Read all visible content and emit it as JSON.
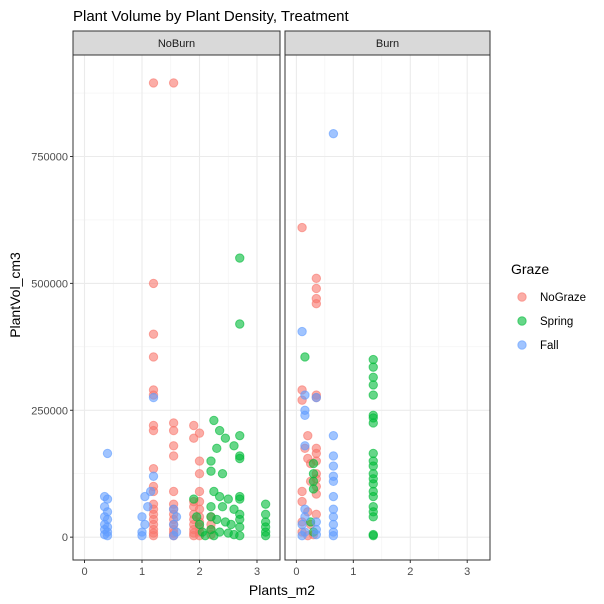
{
  "chart_data": {
    "type": "scatter",
    "title": "Plant Volume by Plant Density, Treatment",
    "xlabel": "Plants_m2",
    "ylabel": "PlantVol_cm3",
    "xlim": [
      -0.2,
      3.4
    ],
    "ylim": [
      -45000,
      950000
    ],
    "x_ticks": [
      0,
      1,
      2,
      3
    ],
    "x_tick_labels": [
      "0",
      "1",
      "2",
      "3"
    ],
    "y_ticks": [
      0,
      250000,
      500000,
      750000
    ],
    "y_tick_labels": [
      "0",
      "250000",
      "500000",
      "750000"
    ],
    "grid": true,
    "legend": {
      "title": "Graze",
      "placement": "right",
      "entries": [
        "NoGraze",
        "Spring",
        "Fall"
      ]
    },
    "colors": {
      "NoGraze": "#F8766D",
      "Spring": "#00BA38",
      "Fall": "#619CFF"
    },
    "panels": [
      {
        "label": "NoBurn",
        "series": [
          {
            "name": "NoGraze",
            "points": [
              [
                1.2,
                895000
              ],
              [
                1.55,
                895000
              ],
              [
                1.2,
                500000
              ],
              [
                1.2,
                400000
              ],
              [
                1.2,
                355000
              ],
              [
                1.2,
                290000
              ],
              [
                1.2,
                280000
              ],
              [
                1.2,
                220000
              ],
              [
                1.2,
                210000
              ],
              [
                1.2,
                135000
              ],
              [
                1.2,
                100000
              ],
              [
                1.2,
                90000
              ],
              [
                1.2,
                65000
              ],
              [
                1.2,
                55000
              ],
              [
                1.2,
                45000
              ],
              [
                1.2,
                35000
              ],
              [
                1.2,
                25000
              ],
              [
                1.2,
                15000
              ],
              [
                1.2,
                8000
              ],
              [
                1.2,
                3000
              ],
              [
                1.55,
                225000
              ],
              [
                1.55,
                210000
              ],
              [
                1.55,
                180000
              ],
              [
                1.55,
                160000
              ],
              [
                1.55,
                90000
              ],
              [
                1.55,
                65000
              ],
              [
                1.55,
                55000
              ],
              [
                1.55,
                45000
              ],
              [
                1.55,
                35000
              ],
              [
                1.55,
                25000
              ],
              [
                1.55,
                15000
              ],
              [
                1.55,
                8000
              ],
              [
                1.55,
                3000
              ],
              [
                1.9,
                220000
              ],
              [
                1.9,
                195000
              ],
              [
                1.9,
                70000
              ],
              [
                1.9,
                60000
              ],
              [
                1.9,
                45000
              ],
              [
                1.9,
                35000
              ],
              [
                1.9,
                25000
              ],
              [
                1.9,
                15000
              ],
              [
                1.9,
                8000
              ],
              [
                1.9,
                3000
              ],
              [
                2.0,
                205000
              ],
              [
                2.0,
                150000
              ],
              [
                2.0,
                125000
              ],
              [
                2.0,
                90000
              ],
              [
                2.0,
                70000
              ],
              [
                2.0,
                55000
              ],
              [
                2.0,
                40000
              ],
              [
                2.0,
                30000
              ],
              [
                2.0,
                20000
              ],
              [
                2.0,
                10000
              ],
              [
                2.0,
                3000
              ],
              [
                2.2,
                40000
              ],
              [
                2.2,
                25000
              ],
              [
                2.2,
                15000
              ],
              [
                2.2,
                5000
              ]
            ]
          },
          {
            "name": "Spring",
            "points": [
              [
                2.7,
                550000
              ],
              [
                2.7,
                420000
              ],
              [
                2.25,
                230000
              ],
              [
                2.35,
                210000
              ],
              [
                2.45,
                195000
              ],
              [
                2.6,
                180000
              ],
              [
                2.7,
                200000
              ],
              [
                2.7,
                160000
              ],
              [
                2.7,
                155000
              ],
              [
                2.3,
                175000
              ],
              [
                2.2,
                150000
              ],
              [
                2.2,
                130000
              ],
              [
                2.4,
                125000
              ],
              [
                2.25,
                90000
              ],
              [
                2.35,
                80000
              ],
              [
                2.5,
                75000
              ],
              [
                2.7,
                80000
              ],
              [
                2.7,
                75000
              ],
              [
                2.2,
                60000
              ],
              [
                2.4,
                60000
              ],
              [
                2.6,
                55000
              ],
              [
                2.7,
                45000
              ],
              [
                2.2,
                40000
              ],
              [
                2.3,
                35000
              ],
              [
                2.45,
                30000
              ],
              [
                2.55,
                25000
              ],
              [
                2.7,
                35000
              ],
              [
                2.7,
                20000
              ],
              [
                2.2,
                15000
              ],
              [
                2.35,
                10000
              ],
              [
                2.5,
                8000
              ],
              [
                2.6,
                5000
              ],
              [
                2.7,
                3000
              ],
              [
                2.25,
                3000
              ],
              [
                3.15,
                65000
              ],
              [
                3.15,
                45000
              ],
              [
                3.15,
                30000
              ],
              [
                3.15,
                20000
              ],
              [
                3.15,
                10000
              ],
              [
                3.15,
                3000
              ],
              [
                1.9,
                75000
              ],
              [
                1.95,
                40000
              ],
              [
                2.0,
                25000
              ],
              [
                2.05,
                10000
              ],
              [
                2.1,
                3000
              ]
            ]
          },
          {
            "name": "Fall",
            "points": [
              [
                0.4,
                165000
              ],
              [
                0.35,
                80000
              ],
              [
                0.4,
                75000
              ],
              [
                0.35,
                60000
              ],
              [
                0.4,
                50000
              ],
              [
                0.35,
                40000
              ],
              [
                0.4,
                35000
              ],
              [
                0.35,
                25000
              ],
              [
                0.4,
                20000
              ],
              [
                0.35,
                15000
              ],
              [
                0.4,
                10000
              ],
              [
                0.35,
                5000
              ],
              [
                0.4,
                3000
              ],
              [
                1.2,
                275000
              ],
              [
                1.2,
                120000
              ],
              [
                1.15,
                90000
              ],
              [
                1.05,
                80000
              ],
              [
                1.1,
                60000
              ],
              [
                1.0,
                40000
              ],
              [
                1.05,
                25000
              ],
              [
                1.0,
                10000
              ],
              [
                1.0,
                3000
              ],
              [
                1.55,
                55000
              ],
              [
                1.6,
                40000
              ],
              [
                1.55,
                25000
              ],
              [
                1.6,
                10000
              ],
              [
                1.55,
                3000
              ]
            ]
          }
        ]
      },
      {
        "label": "Burn",
        "series": [
          {
            "name": "NoGraze",
            "points": [
              [
                0.1,
                610000
              ],
              [
                0.35,
                510000
              ],
              [
                0.35,
                490000
              ],
              [
                0.35,
                470000
              ],
              [
                0.35,
                460000
              ],
              [
                0.1,
                290000
              ],
              [
                0.1,
                270000
              ],
              [
                0.35,
                280000
              ],
              [
                0.35,
                275000
              ],
              [
                0.2,
                200000
              ],
              [
                0.15,
                175000
              ],
              [
                0.2,
                155000
              ],
              [
                0.35,
                175000
              ],
              [
                0.35,
                165000
              ],
              [
                0.35,
                150000
              ],
              [
                0.35,
                125000
              ],
              [
                0.35,
                115000
              ],
              [
                0.25,
                145000
              ],
              [
                0.25,
                110000
              ],
              [
                0.1,
                90000
              ],
              [
                0.1,
                70000
              ],
              [
                0.35,
                100000
              ],
              [
                0.35,
                85000
              ],
              [
                0.2,
                50000
              ],
              [
                0.1,
                30000
              ],
              [
                0.35,
                45000
              ],
              [
                0.25,
                25000
              ],
              [
                0.1,
                10000
              ],
              [
                0.3,
                5000
              ],
              [
                0.2,
                3000
              ]
            ]
          },
          {
            "name": "Spring",
            "points": [
              [
                0.15,
                355000
              ],
              [
                0.3,
                145000
              ],
              [
                0.3,
                125000
              ],
              [
                0.3,
                110000
              ],
              [
                0.3,
                95000
              ],
              [
                0.25,
                30000
              ],
              [
                0.3,
                10000
              ],
              [
                1.35,
                350000
              ],
              [
                1.35,
                335000
              ],
              [
                1.35,
                315000
              ],
              [
                1.35,
                300000
              ],
              [
                1.35,
                280000
              ],
              [
                1.35,
                240000
              ],
              [
                1.35,
                235000
              ],
              [
                1.35,
                225000
              ],
              [
                1.35,
                165000
              ],
              [
                1.35,
                150000
              ],
              [
                1.35,
                140000
              ],
              [
                1.35,
                125000
              ],
              [
                1.35,
                115000
              ],
              [
                1.35,
                105000
              ],
              [
                1.35,
                90000
              ],
              [
                1.35,
                80000
              ],
              [
                1.35,
                60000
              ],
              [
                1.35,
                50000
              ],
              [
                1.35,
                40000
              ],
              [
                1.35,
                5000
              ],
              [
                1.35,
                3000
              ]
            ]
          },
          {
            "name": "Fall",
            "points": [
              [
                0.65,
                795000
              ],
              [
                0.1,
                405000
              ],
              [
                0.15,
                280000
              ],
              [
                0.15,
                250000
              ],
              [
                0.15,
                240000
              ],
              [
                0.35,
                275000
              ],
              [
                0.15,
                180000
              ],
              [
                0.65,
                200000
              ],
              [
                0.65,
                160000
              ],
              [
                0.65,
                140000
              ],
              [
                0.65,
                120000
              ],
              [
                0.65,
                110000
              ],
              [
                0.65,
                80000
              ],
              [
                0.65,
                55000
              ],
              [
                0.65,
                40000
              ],
              [
                0.65,
                25000
              ],
              [
                0.65,
                10000
              ],
              [
                0.65,
                3000
              ],
              [
                0.15,
                55000
              ],
              [
                0.15,
                40000
              ],
              [
                0.1,
                25000
              ],
              [
                0.15,
                10000
              ],
              [
                0.1,
                3000
              ],
              [
                0.35,
                30000
              ],
              [
                0.35,
                15000
              ],
              [
                0.35,
                5000
              ]
            ]
          }
        ]
      }
    ]
  }
}
